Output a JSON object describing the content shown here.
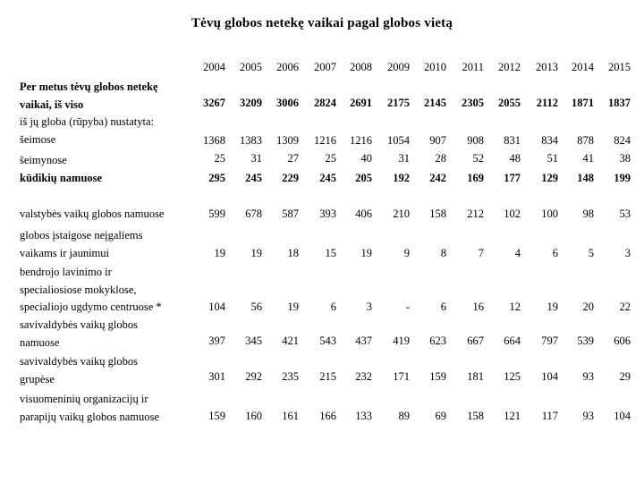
{
  "title": "Tėvų globos netekę vaikai pagal globos vietą",
  "years": [
    "2004",
    "2005",
    "2006",
    "2007",
    "2008",
    "2009",
    "2010",
    "2011",
    "2012",
    "2013",
    "2014",
    "2015"
  ],
  "rows": [
    {
      "label": [
        "Per metus tėvų globos netekę",
        "vaikai, iš viso"
      ],
      "bold": true,
      "values": [
        "3267",
        "3209",
        "3006",
        "2824",
        "2691",
        "2175",
        "2145",
        "2305",
        "2055",
        "2112",
        "1871",
        "1837"
      ]
    },
    {
      "label": [
        "iš jų globa (rūpyba) nustatyta:"
      ],
      "bold": false,
      "values": []
    },
    {
      "label": [
        "šeimose"
      ],
      "bold": false,
      "values": [
        "1368",
        "1383",
        "1309",
        "1216",
        "1216",
        "1054",
        "907",
        "908",
        "831",
        "834",
        "878",
        "824"
      ]
    },
    {
      "label": [
        "šeimynose"
      ],
      "bold": false,
      "values": [
        "25",
        "31",
        "27",
        "25",
        "40",
        "31",
        "28",
        "52",
        "48",
        "51",
        "41",
        "38"
      ]
    },
    {
      "label": [
        "kūdikių namuose"
      ],
      "bold": true,
      "values": [
        "295",
        "245",
        "229",
        "245",
        "205",
        "192",
        "242",
        "169",
        "177",
        "129",
        "148",
        "199"
      ]
    },
    {
      "label": [
        "valstybės vaikų globos namuose"
      ],
      "bold": false,
      "values": [
        "599",
        "678",
        "587",
        "393",
        "406",
        "210",
        "158",
        "212",
        "102",
        "100",
        "98",
        "53"
      ]
    },
    {
      "label": [
        "globos įstaigose neįgaliems",
        "vaikams ir jaunimui"
      ],
      "bold": false,
      "values": [
        "19",
        "19",
        "18",
        "15",
        "19",
        "9",
        "8",
        "7",
        "4",
        "6",
        "5",
        "3"
      ]
    },
    {
      "label": [
        "bendrojo lavinimo ir",
        "specialiosiose mokyklose,",
        "specialiojo ugdymo centruose *"
      ],
      "bold": false,
      "values": [
        "104",
        "56",
        "19",
        "6",
        "3",
        "-",
        "6",
        "16",
        "12",
        "19",
        "20",
        "22"
      ]
    },
    {
      "label": [
        "savivaldybės vaikų globos",
        "namuose"
      ],
      "bold": false,
      "values": [
        "397",
        "345",
        "421",
        "543",
        "437",
        "419",
        "623",
        "667",
        "664",
        "797",
        "539",
        "606"
      ]
    },
    {
      "label": [
        "savivaldybės vaikų globos",
        "grupėse"
      ],
      "bold": false,
      "values": [
        "301",
        "292",
        "235",
        "215",
        "232",
        "171",
        "159",
        "181",
        "125",
        "104",
        "93",
        "29"
      ]
    },
    {
      "label": [
        "visuomeninių organizacijų ir",
        "parapijų vaikų globos namuose"
      ],
      "bold": false,
      "values": [
        "159",
        "160",
        "161",
        "166",
        "133",
        "89",
        "69",
        "158",
        "121",
        "117",
        "93",
        "104"
      ]
    }
  ]
}
